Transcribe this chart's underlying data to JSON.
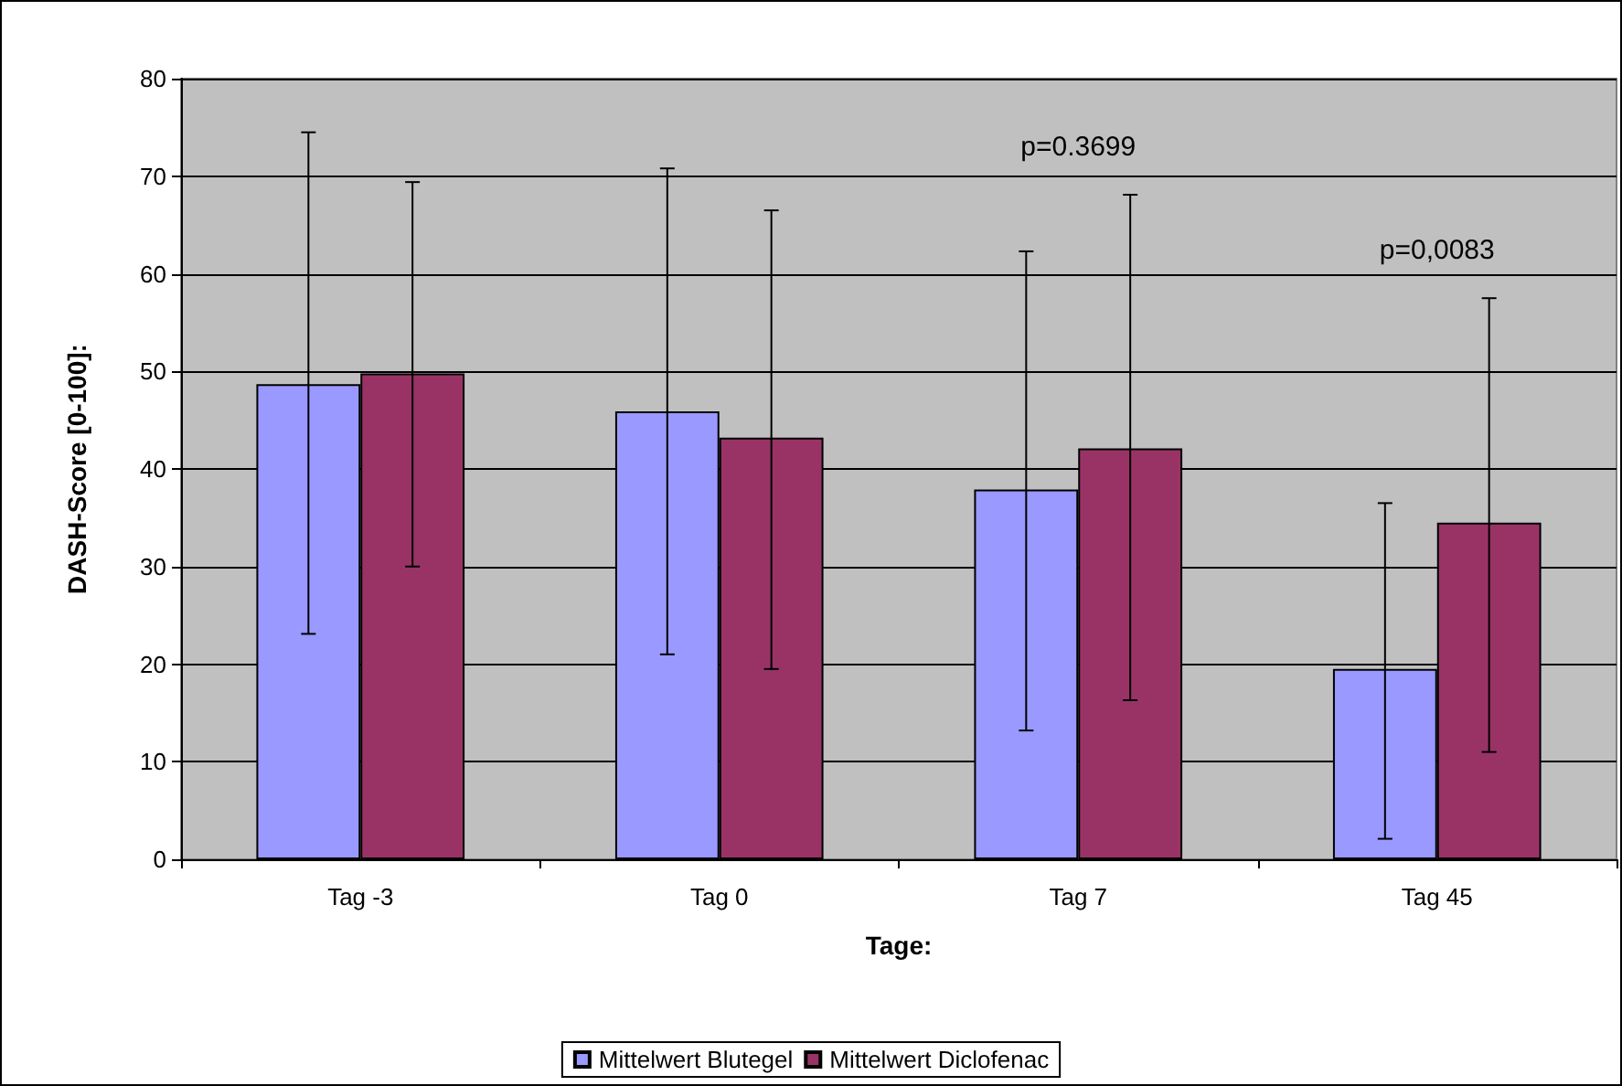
{
  "chart_data": {
    "type": "bar",
    "xlabel": "Tage:",
    "ylabel": "DASH-Score [0-100]:",
    "categories": [
      "Tag -3",
      "Tag 0",
      "Tag 7",
      "Tag 45"
    ],
    "series": [
      {
        "name": "Mittelwert Blutegel",
        "color": "#9999ff",
        "values": [
          48.7,
          45.9,
          37.9,
          19.5
        ],
        "errors": [
          [
            23.1,
            74.5
          ],
          [
            21,
            70.8
          ],
          [
            13.2,
            62.3
          ],
          [
            2.1,
            36.5
          ]
        ]
      },
      {
        "name": "Mittelwert Diclofenac",
        "color": "#993366",
        "values": [
          49.8,
          43.2,
          42.1,
          34.5
        ],
        "errors": [
          [
            30,
            69.4
          ],
          [
            19.5,
            66.5
          ],
          [
            16.3,
            68.1
          ],
          [
            11,
            57.5
          ]
        ]
      }
    ],
    "annotations": [
      "p=0.3699",
      "p=0,0083"
    ],
    "ylim": [
      0,
      80
    ],
    "yticks": [
      0,
      10,
      20,
      30,
      40,
      50,
      60,
      70,
      80
    ],
    "grid": "y",
    "legend": "bottom"
  }
}
